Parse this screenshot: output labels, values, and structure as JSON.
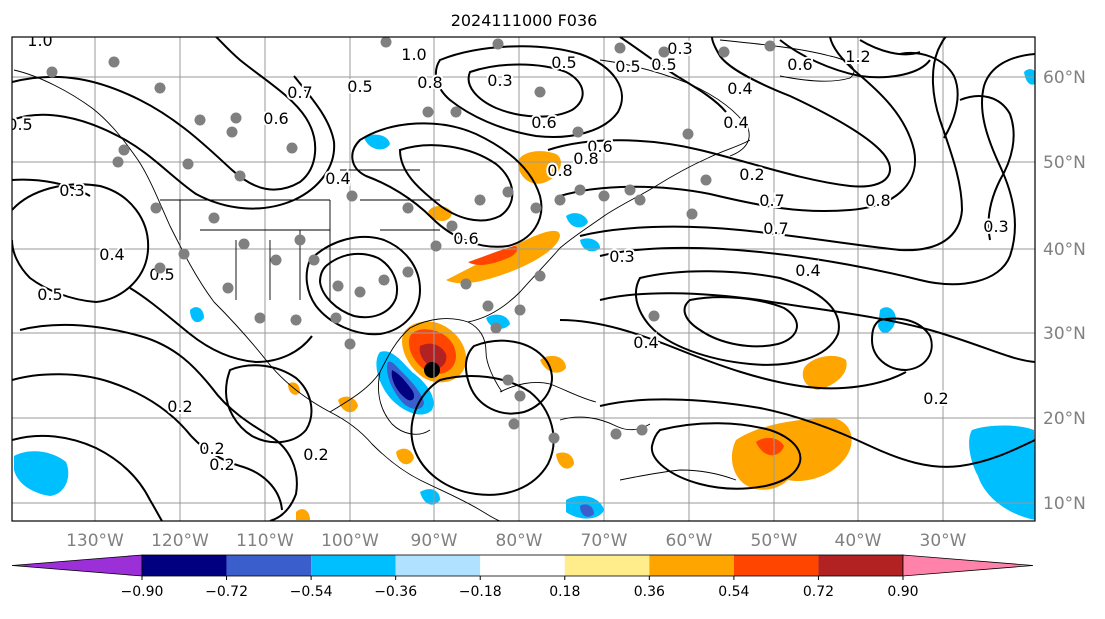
{
  "title": "2024111000 F036",
  "lon_labels": [
    "130°W",
    "120°W",
    "110°W",
    "100°W",
    "90°W",
    "80°W",
    "70°W",
    "60°W",
    "50°W",
    "40°W",
    "30°W"
  ],
  "lat_labels": [
    "60°N",
    "50°N",
    "40°N",
    "30°N",
    "20°N",
    "10°N"
  ],
  "colorbar": {
    "ticks": [
      "−0.90",
      "−0.72",
      "−0.54",
      "−0.36",
      "−0.18",
      "0.18",
      "0.36",
      "0.54",
      "0.72",
      "0.90"
    ],
    "colors": [
      "#9b30d9",
      "#000080",
      "#3a5fcd",
      "#00bfff",
      "#b0e2ff",
      "#ffffff",
      "#ffec8b",
      "#ffa500",
      "#ff4500",
      "#b22222",
      "#ff82ab"
    ]
  },
  "contour_labels": [
    "1.0",
    "0.5",
    "0.2",
    "0.3",
    "0.4",
    "0.5",
    "0.5",
    "0.2",
    "0.2",
    "0.6",
    "0.7",
    "0.5",
    "0.8",
    "0.3",
    "0.5",
    "0.6",
    "0.8",
    "0.6",
    "0.5",
    "0.5",
    "0.4",
    "0.3",
    "0.4",
    "0.2",
    "0.6",
    "0.4",
    "0.7",
    "0.8",
    "0.7",
    "0.4",
    "0.3",
    "0.8",
    "0.3",
    "0.4",
    "0.2",
    "0.2",
    "1.0",
    "1.2",
    "0.6"
  ],
  "fill_colors": {
    "neg_deep": "#000080",
    "neg_mid": "#3a5fcd",
    "neg_light": "#00bfff",
    "pos_light": "#ffa500",
    "pos_mid": "#ff4500",
    "pos_deep": "#b22222",
    "station": "#808080"
  }
}
